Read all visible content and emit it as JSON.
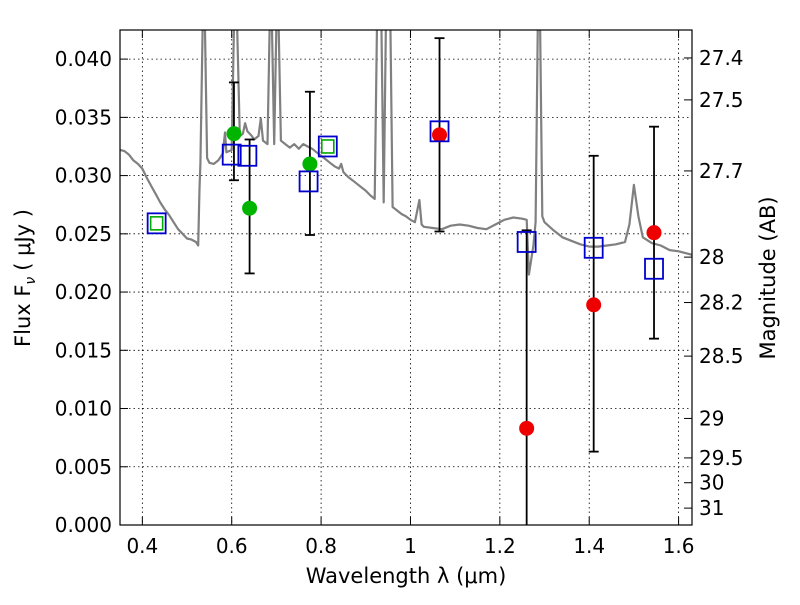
{
  "chart_data": {
    "type": "scatter",
    "xlabel": "Wavelength  λ (μm)",
    "ylabel": "Flux  F",
    "ylabel_sub": "ν",
    "ylabel_unit": "( μJy )",
    "y2label": "Magnitude (AB)",
    "xlim": [
      0.35,
      1.63
    ],
    "ylim": [
      0.0,
      0.0425
    ],
    "grid": true,
    "x_ticks": [
      {
        "v": 0.4,
        "label": "0.4"
      },
      {
        "v": 0.6,
        "label": "0.6"
      },
      {
        "v": 0.8,
        "label": "0.8"
      },
      {
        "v": 1.0,
        "label": "1"
      },
      {
        "v": 1.2,
        "label": "1.2"
      },
      {
        "v": 1.4,
        "label": "1.4"
      },
      {
        "v": 1.6,
        "label": "1.6"
      }
    ],
    "y_ticks": [
      {
        "v": 0.0,
        "label": "0.000"
      },
      {
        "v": 0.005,
        "label": "0.005"
      },
      {
        "v": 0.01,
        "label": "0.010"
      },
      {
        "v": 0.015,
        "label": "0.015"
      },
      {
        "v": 0.02,
        "label": "0.020"
      },
      {
        "v": 0.025,
        "label": "0.025"
      },
      {
        "v": 0.03,
        "label": "0.030"
      },
      {
        "v": 0.035,
        "label": "0.035"
      },
      {
        "v": 0.04,
        "label": "0.040"
      }
    ],
    "mag_ticks": [
      {
        "label": "27.4",
        "flux": 0.0401
      },
      {
        "label": "27.5",
        "flux": 0.0365
      },
      {
        "label": "27.7",
        "flux": 0.0304
      },
      {
        "label": "28",
        "flux": 0.023
      },
      {
        "label": "28.2",
        "flux": 0.0191
      },
      {
        "label": "28.5",
        "flux": 0.0145
      },
      {
        "label": "29",
        "flux": 0.00915
      },
      {
        "label": "29.5",
        "flux": 0.00576
      },
      {
        "label": "30",
        "flux": 0.00363
      },
      {
        "label": "31",
        "flux": 0.00145
      }
    ],
    "colors": {
      "model": "#808080",
      "photometry_green": "#00b400",
      "photometry_red": "#ee0000",
      "model_box": "#0000cc",
      "model_box_inner": "#00aa00",
      "errorbar": "#000000",
      "grid": "#000000"
    },
    "model_spectrum": [
      [
        0.35,
        0.0322
      ],
      [
        0.36,
        0.0321
      ],
      [
        0.37,
        0.0318
      ],
      [
        0.38,
        0.0313
      ],
      [
        0.39,
        0.031
      ],
      [
        0.4,
        0.0306
      ],
      [
        0.41,
        0.0298
      ],
      [
        0.42,
        0.0291
      ],
      [
        0.43,
        0.0284
      ],
      [
        0.44,
        0.0277
      ],
      [
        0.45,
        0.0271
      ],
      [
        0.46,
        0.0266
      ],
      [
        0.47,
        0.026
      ],
      [
        0.48,
        0.0254
      ],
      [
        0.49,
        0.025
      ],
      [
        0.5,
        0.0246
      ],
      [
        0.51,
        0.0245
      ],
      [
        0.52,
        0.0243
      ],
      [
        0.525,
        0.024
      ],
      [
        0.528,
        0.0289
      ],
      [
        0.53,
        0.031
      ],
      [
        0.535,
        0.043
      ],
      [
        0.54,
        0.043
      ],
      [
        0.545,
        0.0315
      ],
      [
        0.55,
        0.0311
      ],
      [
        0.56,
        0.031
      ],
      [
        0.57,
        0.0313
      ],
      [
        0.58,
        0.0319
      ],
      [
        0.585,
        0.0337
      ],
      [
        0.588,
        0.032
      ],
      [
        0.6,
        0.0322
      ],
      [
        0.605,
        0.043
      ],
      [
        0.612,
        0.043
      ],
      [
        0.618,
        0.0334
      ],
      [
        0.625,
        0.0336
      ],
      [
        0.63,
        0.0345
      ],
      [
        0.635,
        0.0338
      ],
      [
        0.645,
        0.0334
      ],
      [
        0.65,
        0.0331
      ],
      [
        0.66,
        0.0334
      ],
      [
        0.665,
        0.0349
      ],
      [
        0.67,
        0.033
      ],
      [
        0.68,
        0.0327
      ],
      [
        0.685,
        0.043
      ],
      [
        0.69,
        0.043
      ],
      [
        0.695,
        0.0327
      ],
      [
        0.7,
        0.043
      ],
      [
        0.705,
        0.043
      ],
      [
        0.71,
        0.033
      ],
      [
        0.72,
        0.0327
      ],
      [
        0.73,
        0.0324
      ],
      [
        0.74,
        0.0327
      ],
      [
        0.75,
        0.0323
      ],
      [
        0.76,
        0.0327
      ],
      [
        0.77,
        0.0325
      ],
      [
        0.78,
        0.0323
      ],
      [
        0.79,
        0.032
      ],
      [
        0.8,
        0.0317
      ],
      [
        0.81,
        0.0314
      ],
      [
        0.82,
        0.0311
      ],
      [
        0.83,
        0.0308
      ],
      [
        0.84,
        0.0306
      ],
      [
        0.845,
        0.031
      ],
      [
        0.85,
        0.0303
      ],
      [
        0.86,
        0.0299
      ],
      [
        0.87,
        0.0296
      ],
      [
        0.88,
        0.0293
      ],
      [
        0.89,
        0.029
      ],
      [
        0.9,
        0.0287
      ],
      [
        0.91,
        0.0283
      ],
      [
        0.92,
        0.028
      ],
      [
        0.925,
        0.043
      ],
      [
        0.935,
        0.043
      ],
      [
        0.94,
        0.0277
      ],
      [
        0.945,
        0.043
      ],
      [
        0.955,
        0.043
      ],
      [
        0.96,
        0.0273
      ],
      [
        0.97,
        0.027
      ],
      [
        0.98,
        0.0267
      ],
      [
        0.99,
        0.0265
      ],
      [
        1.0,
        0.0262
      ],
      [
        1.01,
        0.026
      ],
      [
        1.02,
        0.0279
      ],
      [
        1.025,
        0.0258
      ],
      [
        1.03,
        0.0256
      ],
      [
        1.05,
        0.0255
      ],
      [
        1.07,
        0.0254
      ],
      [
        1.09,
        0.0257
      ],
      [
        1.11,
        0.0258
      ],
      [
        1.13,
        0.0257
      ],
      [
        1.15,
        0.0255
      ],
      [
        1.17,
        0.0254
      ],
      [
        1.19,
        0.0258
      ],
      [
        1.21,
        0.0262
      ],
      [
        1.23,
        0.0264
      ],
      [
        1.25,
        0.0263
      ],
      [
        1.26,
        0.0262
      ],
      [
        1.265,
        0.0215
      ],
      [
        1.275,
        0.024
      ],
      [
        1.28,
        0.026
      ],
      [
        1.285,
        0.043
      ],
      [
        1.29,
        0.043
      ],
      [
        1.295,
        0.0265
      ],
      [
        1.3,
        0.026
      ],
      [
        1.32,
        0.0253
      ],
      [
        1.34,
        0.0247
      ],
      [
        1.36,
        0.0244
      ],
      [
        1.38,
        0.0241
      ],
      [
        1.4,
        0.0239
      ],
      [
        1.42,
        0.0239
      ],
      [
        1.44,
        0.024
      ],
      [
        1.46,
        0.0241
      ],
      [
        1.48,
        0.0243
      ],
      [
        1.49,
        0.0258
      ],
      [
        1.5,
        0.0292
      ],
      [
        1.51,
        0.0265
      ],
      [
        1.52,
        0.0247
      ],
      [
        1.54,
        0.0242
      ],
      [
        1.56,
        0.024
      ],
      [
        1.58,
        0.0236
      ],
      [
        1.6,
        0.0235
      ],
      [
        1.63,
        0.0232
      ]
    ],
    "observed_green": [
      {
        "x": 0.605,
        "y": 0.0336,
        "yerr_low": 0.004,
        "yerr_high": 0.0044
      },
      {
        "x": 0.64,
        "y": 0.0272,
        "yerr_low": 0.0056,
        "yerr_high": 0.0059
      },
      {
        "x": 0.775,
        "y": 0.031,
        "yerr_low": 0.0061,
        "yerr_high": 0.0062
      }
    ],
    "observed_red": [
      {
        "x": 1.065,
        "y": 0.0335,
        "yerr_low": 0.0083,
        "yerr_high": 0.0083
      },
      {
        "x": 1.26,
        "y": 0.0083,
        "yerr_low": 0.01,
        "yerr_high": 0.017
      },
      {
        "x": 1.41,
        "y": 0.0189,
        "yerr_low": 0.0126,
        "yerr_high": 0.0128
      },
      {
        "x": 1.545,
        "y": 0.0251,
        "yerr_low": 0.0091,
        "yerr_high": 0.0091
      }
    ],
    "model_photometry": [
      {
        "x": 0.432,
        "y": 0.0259,
        "inner": true
      },
      {
        "x": 0.6,
        "y": 0.0318,
        "inner": false
      },
      {
        "x": 0.635,
        "y": 0.0317,
        "inner": false
      },
      {
        "x": 0.772,
        "y": 0.0295,
        "inner": false
      },
      {
        "x": 0.815,
        "y": 0.0325,
        "inner": true
      },
      {
        "x": 1.065,
        "y": 0.0338,
        "inner": false
      },
      {
        "x": 1.26,
        "y": 0.0243,
        "inner": false
      },
      {
        "x": 1.41,
        "y": 0.0238,
        "inner": false
      },
      {
        "x": 1.545,
        "y": 0.022,
        "inner": false
      }
    ]
  }
}
